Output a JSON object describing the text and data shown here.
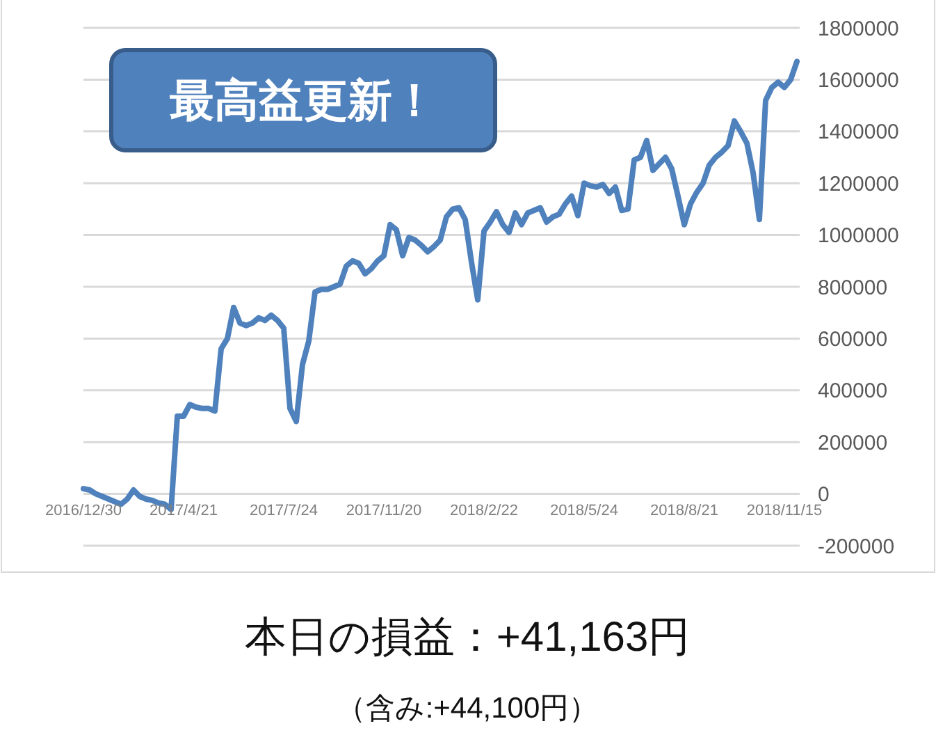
{
  "chart_data": {
    "type": "line",
    "categories": [
      "2016/12/30",
      null,
      null,
      null,
      null,
      null,
      null,
      null,
      null,
      null,
      null,
      null,
      null,
      null,
      null,
      null,
      "2017/4/21",
      null,
      null,
      null,
      null,
      null,
      null,
      null,
      null,
      null,
      null,
      null,
      null,
      null,
      null,
      null,
      "2017/7/24",
      null,
      null,
      null,
      null,
      null,
      null,
      null,
      null,
      null,
      null,
      null,
      null,
      null,
      null,
      null,
      "2017/11/20",
      null,
      null,
      null,
      null,
      null,
      null,
      null,
      null,
      null,
      null,
      null,
      null,
      null,
      null,
      null,
      "2018/2/22",
      null,
      null,
      null,
      null,
      null,
      null,
      null,
      null,
      null,
      null,
      null,
      null,
      null,
      null,
      null,
      "2018/5/24",
      null,
      null,
      null,
      null,
      null,
      null,
      null,
      null,
      null,
      null,
      null,
      null,
      null,
      null,
      null,
      "2018/8/21",
      null,
      null,
      null,
      null,
      null,
      null,
      null,
      null,
      null,
      null,
      null,
      null,
      null,
      null,
      null,
      "2018/11/15",
      null,
      null
    ],
    "series": [
      {
        "color": "#4f81bd",
        "values": [
          20000,
          15000,
          0,
          -10000,
          -20000,
          -30000,
          -40000,
          -20000,
          15000,
          -10000,
          -20000,
          -25000,
          -35000,
          -40000,
          -60000,
          300000,
          300000,
          345000,
          335000,
          330000,
          330000,
          320000,
          560000,
          600000,
          720000,
          660000,
          650000,
          660000,
          680000,
          670000,
          690000,
          670000,
          640000,
          330000,
          280000,
          500000,
          590000,
          780000,
          790000,
          790000,
          800000,
          810000,
          880000,
          900000,
          890000,
          850000,
          870000,
          900000,
          920000,
          1040000,
          1020000,
          920000,
          990000,
          980000,
          960000,
          935000,
          955000,
          980000,
          1070000,
          1100000,
          1105000,
          1060000,
          895000,
          750000,
          1015000,
          1050000,
          1090000,
          1040000,
          1010000,
          1085000,
          1040000,
          1085000,
          1095000,
          1105000,
          1050000,
          1070000,
          1080000,
          1120000,
          1150000,
          1075000,
          1200000,
          1190000,
          1185000,
          1195000,
          1160000,
          1185000,
          1095000,
          1100000,
          1290000,
          1300000,
          1365000,
          1250000,
          1275000,
          1300000,
          1255000,
          1150000,
          1040000,
          1120000,
          1165000,
          1200000,
          1270000,
          1300000,
          1320000,
          1345000,
          1440000,
          1400000,
          1355000,
          1240000,
          1060000,
          1520000,
          1570000,
          1590000,
          1570000,
          1600000,
          1670000
        ]
      }
    ],
    "ylim": [
      -200000,
      1800000
    ],
    "yticks": [
      -200000,
      0,
      200000,
      400000,
      600000,
      800000,
      1000000,
      1200000,
      1400000,
      1600000,
      1800000
    ],
    "grid": "y",
    "annotations": [
      "最高益更新！",
      "本日の損益：+41,163円",
      "（含み:+44,100円）"
    ]
  }
}
